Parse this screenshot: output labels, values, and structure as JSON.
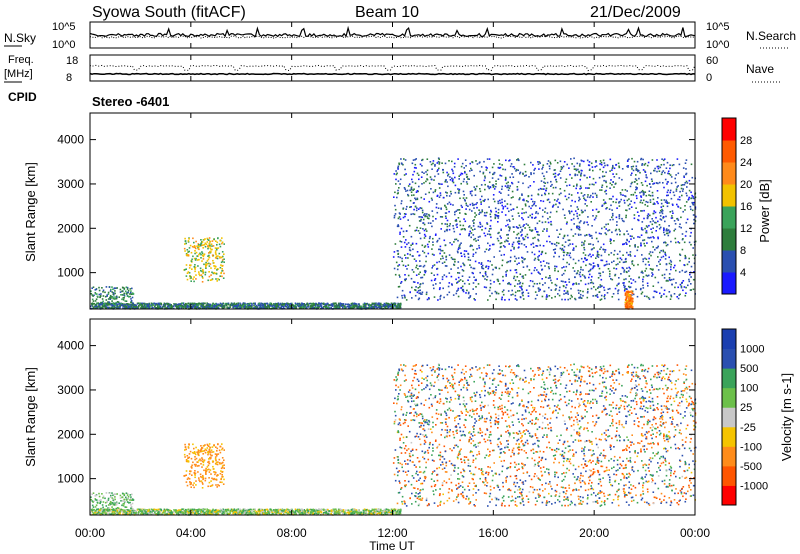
{
  "header": {
    "station": "Syowa South (fitACF)",
    "beam": "Beam 10",
    "date": "21/Dec/2009"
  },
  "noise_panel": {
    "left_label": "N.Sky",
    "right_label": "N.Search",
    "left_ticks": [
      "10^5",
      "10^0"
    ],
    "right_ticks": [
      "10^5",
      "10^0"
    ]
  },
  "freq_panel": {
    "left_label": "Freq.",
    "left_unit": "[MHz]",
    "right_label": "Nave",
    "left_ticks": [
      "18",
      "8"
    ],
    "right_ticks": [
      "60",
      "0"
    ]
  },
  "cpid": {
    "label": "CPID",
    "value": "Stereo -6401"
  },
  "x_axis": {
    "label": "Time UT",
    "ticks": [
      "00:00",
      "04:00",
      "08:00",
      "12:00",
      "16:00",
      "20:00",
      "00:00"
    ]
  },
  "colors": {
    "power": [
      "#1a1aff",
      "#2a4fb0",
      "#2e7d3c",
      "#3aa35a",
      "#f2c200",
      "#ff8a1a",
      "#ff5a00",
      "#ff0000"
    ],
    "velocity": [
      "#ff0000",
      "#ff5500",
      "#ff8c1a",
      "#f5c400",
      "#c8c8c8",
      "#6cc04a",
      "#3aa35a",
      "#2a4fb0",
      "#1b3fb0"
    ]
  },
  "chart_data": [
    {
      "type": "heatmap",
      "panel": "power",
      "ylabel": "Slant Range [km]",
      "xlabel": "Time UT",
      "xlim": [
        0,
        24
      ],
      "ylim": [
        180,
        4600
      ],
      "yticks": [
        1000,
        2000,
        3000,
        4000
      ],
      "colorbar": {
        "label": "Power [dB]",
        "ticks": [
          "4",
          "8",
          "12",
          "16",
          "20",
          "24",
          "28"
        ],
        "range": [
          0,
          30
        ]
      },
      "features": [
        {
          "desc": "ground/near-range scatter",
          "t": [
            0,
            12.3
          ],
          "range": [
            200,
            330
          ],
          "value": 8
        },
        {
          "desc": "early near-range patch",
          "t": [
            0,
            1.7
          ],
          "range": [
            300,
            700
          ],
          "value": 10
        },
        {
          "desc": "morning echo patch",
          "t": [
            3.7,
            5.3
          ],
          "range": [
            800,
            1800
          ],
          "value": 16
        },
        {
          "desc": "sporadic scatter",
          "t": [
            12.0,
            24.0
          ],
          "range": [
            400,
            3600
          ],
          "value": 6
        },
        {
          "desc": "strong late echo",
          "t": [
            21.2,
            21.5
          ],
          "range": [
            200,
            600
          ],
          "value": 22
        }
      ]
    },
    {
      "type": "heatmap",
      "panel": "velocity",
      "ylabel": "Slant Range [km]",
      "xlabel": "Time UT",
      "xlim": [
        0,
        24
      ],
      "ylim": [
        180,
        4600
      ],
      "yticks": [
        1000,
        2000,
        3000,
        4000
      ],
      "colorbar": {
        "label": "Velocity [m s-1]",
        "ticks": [
          "1000",
          "500",
          "100",
          "25",
          "-25",
          "-100",
          "-500",
          "-1000"
        ]
      },
      "features": [
        {
          "desc": "near-range low-velocity scatter",
          "t": [
            0,
            12.3
          ],
          "range": [
            200,
            330
          ],
          "value": 50
        },
        {
          "desc": "early near-range patch",
          "t": [
            0,
            1.7
          ],
          "range": [
            300,
            700
          ],
          "value": 100
        },
        {
          "desc": "morning echo patch",
          "t": [
            3.7,
            5.3
          ],
          "range": [
            800,
            1800
          ],
          "value": -150
        },
        {
          "desc": "mixed-velocity sporadic scatter",
          "t": [
            12.0,
            24.0
          ],
          "range": [
            400,
            3600
          ],
          "value": 0
        }
      ]
    }
  ]
}
